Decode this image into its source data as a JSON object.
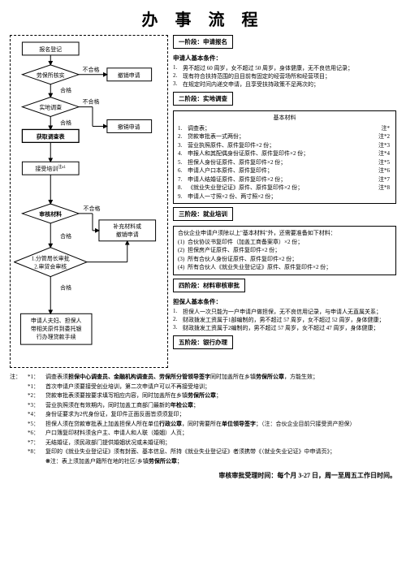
{
  "title": "办 事 流 程",
  "stages": {
    "s1": "一阶段：申请报名",
    "s2": "二阶段：实地调查",
    "s3": "三阶段：就业培训",
    "s4": "四阶段：材料审核审批",
    "s5": "五阶段：银行办理"
  },
  "flow": {
    "n1": "报名登记",
    "n2": "劳保所核实",
    "n3": "撤销申请",
    "n4": "实地调查",
    "n5": "撤销申请",
    "n6": "获取调查表",
    "n7": "接受培训",
    "n8": "审核材料",
    "n9": "补充材料或撤销申请",
    "n10": "1.分管局长审批\n2.审贷会审核",
    "n11": "申请人夫妇、担保人带相关原件到委托银行办理贷款手续",
    "pass": "合格",
    "fail": "不合格",
    "sup1": "注a1"
  },
  "applicant": {
    "title": "申请人基本条件：",
    "items": [
      "男不超过 60 周岁，女不超过 50 周岁，身体健康，无不良信用记录；",
      "现有符合扶持范围的且目前有固定的经营场所和经营项目；",
      "在规定时间内递交申请，且享受扶持政策不足两次的；"
    ]
  },
  "materials": {
    "title": "基本材料",
    "items": [
      {
        "t": "调查表；",
        "r": "注*"
      },
      {
        "t": "贷款审批表一式两份；",
        "r": "注*2"
      },
      {
        "t": "营业执照原件、原件复印件×2 份；",
        "r": "注*3"
      },
      {
        "t": "申报人和其配偶身份证原件、原件复印件×2 份；",
        "r": "注*4"
      },
      {
        "t": "担保人身份证原件、原件复印件×2 份；",
        "r": "注*5"
      },
      {
        "t": "申请人户口本原件、原件复印件；",
        "r": "注*6"
      },
      {
        "t": "申请人结婚证原件、原件复印件×2 份；",
        "r": "注*7"
      },
      {
        "t": "《就业失业登记证》原件、原件复印件×2 份；",
        "r": "注*8"
      },
      {
        "t": "申请人一寸照×2 份、两寸照×2 份；",
        "r": ""
      }
    ]
  },
  "partner": {
    "intro": "合伙企业申请户须除以上\"基本材料\"外，还需要准备如下材料：",
    "items": [
      "合伙协议书复印件（加盖工商备案章）×2 份；",
      "担保房产证原件、原件复印件×2 份；",
      "所有合伙人身份证原件、原件复印件×2 份；",
      "所有合伙人《就业失业登记证》原件、原件复印件×2 份；"
    ]
  },
  "guarantor": {
    "title": "担保人基本条件：",
    "items": [
      "担保人一次只能为一户申请户做担保，无不良信用记录，与申请人无直属关系；",
      "财政拨发工资属于1部编制的，男不超过 57 周岁，女不超过 52 周岁，身体健康；",
      "财政拨发工资属于2编制的，男不超过 57 周岁，女不超过 47 周岁，身体健康；"
    ]
  },
  "notes": {
    "label": "注：",
    "items": [
      {
        "k": "*1：",
        "t": "调查表须<b>担保中心调查员、金融机构调查员、劳保所分管领导签字</b>同时加盖所在乡镇<b>劳保所公章</b>，方能生效；"
      },
      {
        "k": "*1：",
        "t": "首次申请户须要接受创业培训，第二次申请户可以不再接受培训；"
      },
      {
        "k": "*2：",
        "t": "贷款审批表须要按要求填写相应内容，同时加盖所在乡镇<b>劳保所公章</b>；"
      },
      {
        "k": "*3：",
        "t": "营业执照须在有效期内，同时加盖工商部门最新的<b>年检公章</b>；"
      },
      {
        "k": "*4：",
        "t": "身份证要求为2代身份证，复印件正面反面皆须须复印；"
      },
      {
        "k": "*5：",
        "t": "担保人须在贷款审批表上加盖担保人所在单位<b>行政公章</b>，同时需要所在<b>单位领导签字</b>；（注：合伙企业目前只接受资产担保）"
      },
      {
        "k": "*6：",
        "t": "户口簿复印材料须含户主、申请人和人联（婚姻）人页；"
      },
      {
        "k": "*7：",
        "t": "无结婚证，须民政部门提供婚姻状况或未婚证明；"
      },
      {
        "k": "*8：",
        "t": "复印的《就业失业登记证》须有封面、基本信息、所持《就业失业登记证》者须携带《（就业失业记证》中申请页》；"
      },
      {
        "k": "",
        "t": "<b>※</b>注：表上须加盖户籍所在地的社区/乡镇<b>劳保所公章</b>；"
      }
    ]
  },
  "footer": "审核审批受理时间：每个月 3-27 日，周一至周五工作日时间。"
}
